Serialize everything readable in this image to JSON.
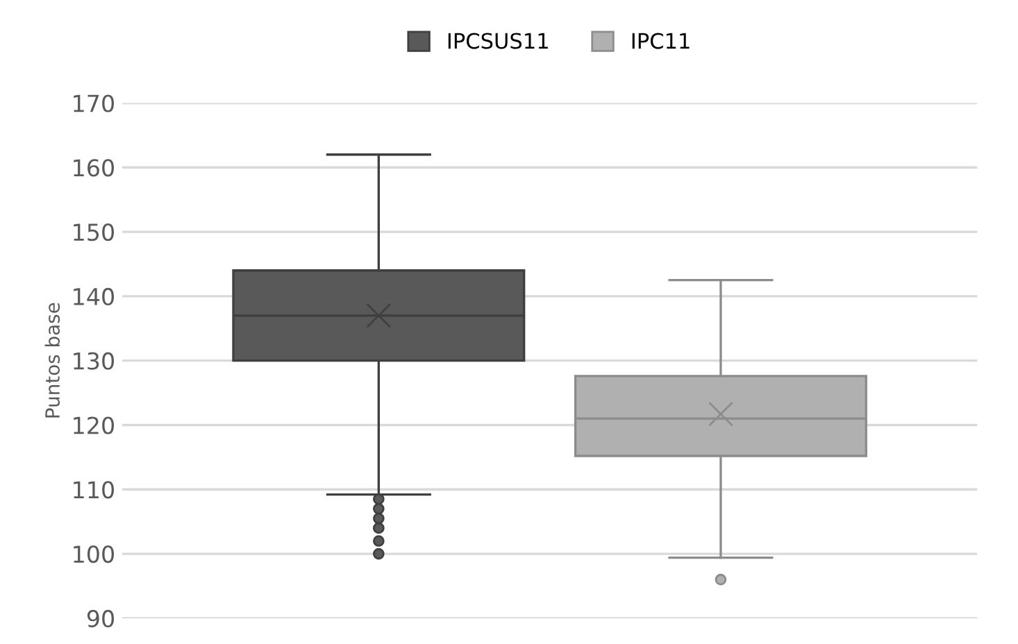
{
  "chart_data": {
    "type": "box",
    "ylabel": "Puntos base",
    "categories": [
      null
    ],
    "series": [
      {
        "name": "IPCSUS11",
        "color": "#595959",
        "boxes": [
          {
            "low": 109.2,
            "q1": 130,
            "median": 137,
            "q3": 144,
            "high": 162,
            "mean": 137,
            "outliers": [
              108.5,
              107,
              105.5,
              104,
              102,
              100
            ]
          }
        ]
      },
      {
        "name": "IPC11",
        "color": "#b0b0b0",
        "boxes": [
          {
            "low": 99.4,
            "q1": 115.2,
            "median": 121,
            "q3": 127.6,
            "high": 142.5,
            "mean": 121.7,
            "outliers": [
              96
            ]
          }
        ]
      }
    ],
    "ylim": [
      90,
      170
    ],
    "yticks": [
      90,
      100,
      110,
      120,
      130,
      140,
      150,
      160,
      170
    ],
    "grid": "y",
    "legend": "top",
    "marker": "cross"
  }
}
